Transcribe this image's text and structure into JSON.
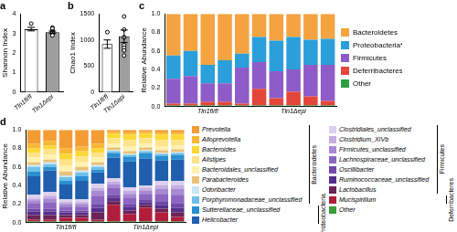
{
  "chart_data": [
    {
      "type": "bar",
      "title": "a",
      "ylabel": "Shannon Index",
      "grid": false,
      "categories": [
        "Tln1fl/fl",
        "Tln1Δepi"
      ],
      "values": [
        3.22,
        3.06
      ],
      "errors": [
        0.09,
        0.06
      ],
      "colors": [
        "#ffffff",
        "#9e9e9e"
      ],
      "points": [
        [
          3.5,
          3.3,
          3.2,
          3.1,
          3.0
        ],
        [
          3.25,
          3.1,
          3.05,
          3.0,
          2.9
        ]
      ],
      "ylim": [
        0,
        4
      ],
      "yticks": [
        0,
        1,
        2,
        3,
        4
      ]
    },
    {
      "type": "bar",
      "title": "b",
      "ylabel": "Chao1 Index",
      "grid": false,
      "categories": [
        "Tln1fl/fl",
        "Tln1Δepi"
      ],
      "values": [
        920,
        1070
      ],
      "errors": [
        80,
        120
      ],
      "colors": [
        "#ffffff",
        "#9e9e9e"
      ],
      "points": [
        [
          1150,
          1050,
          900,
          800,
          700
        ],
        [
          1450,
          1200,
          1050,
          850,
          800
        ]
      ],
      "ylim": [
        0,
        1500
      ],
      "yticks": [
        0,
        500,
        1000,
        1500
      ]
    },
    {
      "type": "bar",
      "title": "c",
      "ylabel": "Relative Abundance",
      "stacked": true,
      "grid": false,
      "legend": "right",
      "categories": [
        null,
        null,
        "Tln1fl/fl",
        null,
        null,
        null,
        null,
        "Tln1Δepi",
        null,
        null
      ],
      "series": [
        {
          "name": "Bacteroidetes",
          "color": "#f4a340",
          "values": [
            0.45,
            0.4,
            0.55,
            0.5,
            0.43,
            0.25,
            0.29,
            0.25,
            0.28,
            0.27
          ]
        },
        {
          "name": "Proteobacteria*",
          "color": "#2b9fd9",
          "values": [
            0.25,
            0.27,
            0.2,
            0.25,
            0.15,
            0.27,
            0.33,
            0.35,
            0.27,
            0.28
          ]
        },
        {
          "name": "Firmicutes",
          "color": "#8e5cc8",
          "values": [
            0.27,
            0.3,
            0.2,
            0.2,
            0.39,
            0.29,
            0.29,
            0.24,
            0.34,
            0.39
          ]
        },
        {
          "name": "Deferribacteres",
          "color": "#e4463b",
          "values": [
            0.02,
            0.02,
            0.04,
            0.04,
            0.02,
            0.18,
            0.08,
            0.15,
            0.1,
            0.05
          ]
        },
        {
          "name": "Other",
          "color": "#2e9e44",
          "values": [
            0.01,
            0.01,
            0.01,
            0.01,
            0.01,
            0.01,
            0.01,
            0.01,
            0.01,
            0.01
          ]
        }
      ],
      "ylim": [
        0,
        1
      ],
      "yticks": [
        {
          "value": 0,
          "label": "0.0"
        },
        0.2,
        0.4,
        0.6,
        0.8,
        {
          "value": 1,
          "label": "1.0"
        }
      ]
    },
    {
      "type": "bar",
      "title": "d",
      "ylabel": "Relative Abundance",
      "stacked": true,
      "grid": false,
      "legend": "right",
      "categories": [
        null,
        null,
        "Tln1fl/fl",
        null,
        null,
        null,
        null,
        "Tln1Δepi",
        null,
        null
      ],
      "series": [
        {
          "name": "Prevotella",
          "group": "Bacteroidetes",
          "color": "#f39c33",
          "values": [
            0.15,
            0.12,
            0.2,
            0.18,
            0.15,
            0.02,
            0.03,
            0.02,
            0.03,
            0.03
          ]
        },
        {
          "name": "Alloprevotella",
          "group": "Bacteroidetes",
          "color": "#f7b733",
          "values": [
            0.05,
            0.05,
            0.06,
            0.05,
            0.05,
            0.02,
            0.02,
            0.02,
            0.02,
            0.02
          ]
        },
        {
          "name": "Bacteroides",
          "group": "Bacteroidetes",
          "color": "#fdd835",
          "values": [
            0.05,
            0.04,
            0.06,
            0.06,
            0.05,
            0.05,
            0.06,
            0.05,
            0.06,
            0.06
          ]
        },
        {
          "name": "Alistipes",
          "group": "Bacteroidetes",
          "color": "#fde48a",
          "values": [
            0.05,
            0.06,
            0.07,
            0.06,
            0.05,
            0.06,
            0.07,
            0.06,
            0.07,
            0.06
          ]
        },
        {
          "name": "Bacteroidales_unclassified",
          "group": "Bacteroidetes",
          "color": "#fff1b0",
          "values": [
            0.05,
            0.05,
            0.06,
            0.05,
            0.05,
            0.04,
            0.05,
            0.04,
            0.04,
            0.04
          ]
        },
        {
          "name": "Parabacteroides",
          "group": "Bacteroidetes",
          "color": "#e8c27a",
          "values": [
            0.03,
            0.03,
            0.04,
            0.04,
            0.03,
            0.03,
            0.03,
            0.03,
            0.03,
            0.03
          ]
        },
        {
          "name": "Odoribacter",
          "group": "Bacteroidetes",
          "color": "#c9e6f5",
          "values": [
            0.02,
            0.02,
            0.02,
            0.02,
            0.02,
            0.01,
            0.01,
            0.01,
            0.01,
            0.01
          ]
        },
        {
          "name": "Porphyromonadaceae_unclassified",
          "group": "Bacteroidetes",
          "color": "#6fc0e8",
          "values": [
            0.05,
            0.03,
            0.04,
            0.04,
            0.03,
            0.02,
            0.02,
            0.02,
            0.02,
            0.02
          ]
        },
        {
          "name": "Sutterellaceae_unclassified",
          "group": "Proteobacteria",
          "color": "#2a8fd0",
          "values": [
            0.05,
            0.04,
            0.04,
            0.05,
            0.03,
            0.05,
            0.05,
            0.06,
            0.05,
            0.05
          ]
        },
        {
          "name": "Helicobacter",
          "group": "Proteobacteria",
          "color": "#1f5fae",
          "values": [
            0.2,
            0.23,
            0.16,
            0.2,
            0.12,
            0.22,
            0.28,
            0.29,
            0.22,
            0.23
          ]
        },
        {
          "name": "Clostridiales_unclassified",
          "group": "Firmicutes",
          "color": "#ddd0ee",
          "values": [
            0.04,
            0.04,
            0.03,
            0.03,
            0.05,
            0.04,
            0.04,
            0.03,
            0.05,
            0.05
          ]
        },
        {
          "name": "Clostridium_XIVb",
          "group": "Firmicutes",
          "color": "#c4aee2",
          "values": [
            0.02,
            0.03,
            0.02,
            0.02,
            0.03,
            0.03,
            0.03,
            0.03,
            0.04,
            0.04
          ]
        },
        {
          "name": "Firmicutes_unclassified",
          "group": "Firmicutes",
          "color": "#a889d3",
          "values": [
            0.03,
            0.04,
            0.03,
            0.03,
            0.05,
            0.04,
            0.04,
            0.03,
            0.05,
            0.06
          ]
        },
        {
          "name": "Lachnospiraceae_unclassified",
          "group": "Firmicutes",
          "color": "#8c66c0",
          "values": [
            0.06,
            0.07,
            0.04,
            0.04,
            0.09,
            0.07,
            0.07,
            0.06,
            0.08,
            0.09
          ]
        },
        {
          "name": "Oscillibacter",
          "group": "Firmicutes",
          "color": "#7048a8",
          "values": [
            0.03,
            0.03,
            0.02,
            0.02,
            0.04,
            0.03,
            0.03,
            0.03,
            0.04,
            0.05
          ]
        },
        {
          "name": "Ruminococcaceae_unclassified",
          "group": "Firmicutes",
          "color": "#54308c",
          "values": [
            0.04,
            0.04,
            0.03,
            0.03,
            0.05,
            0.04,
            0.04,
            0.03,
            0.04,
            0.05
          ]
        },
        {
          "name": "Lactobacillus",
          "group": "Firmicutes",
          "color": "#6b2458",
          "values": [
            0.05,
            0.05,
            0.03,
            0.03,
            0.08,
            0.04,
            0.04,
            0.03,
            0.04,
            0.05
          ]
        },
        {
          "name": "Mucispirillum",
          "group": "Deferribacteres",
          "color": "#b01e3c",
          "values": [
            0.02,
            0.02,
            0.04,
            0.04,
            0.02,
            0.18,
            0.08,
            0.15,
            0.1,
            0.05
          ]
        },
        {
          "name": "Other",
          "color": "#3a9d3a",
          "values": [
            0.01,
            0.01,
            0.01,
            0.01,
            0.01,
            0.01,
            0.01,
            0.01,
            0.01,
            0.01
          ]
        }
      ],
      "ylim": [
        0,
        1
      ],
      "yticks": [
        {
          "value": 0,
          "label": "0.0"
        },
        0.2,
        0.4,
        0.6,
        0.8,
        {
          "value": 1,
          "label": "1.0"
        }
      ]
    }
  ]
}
